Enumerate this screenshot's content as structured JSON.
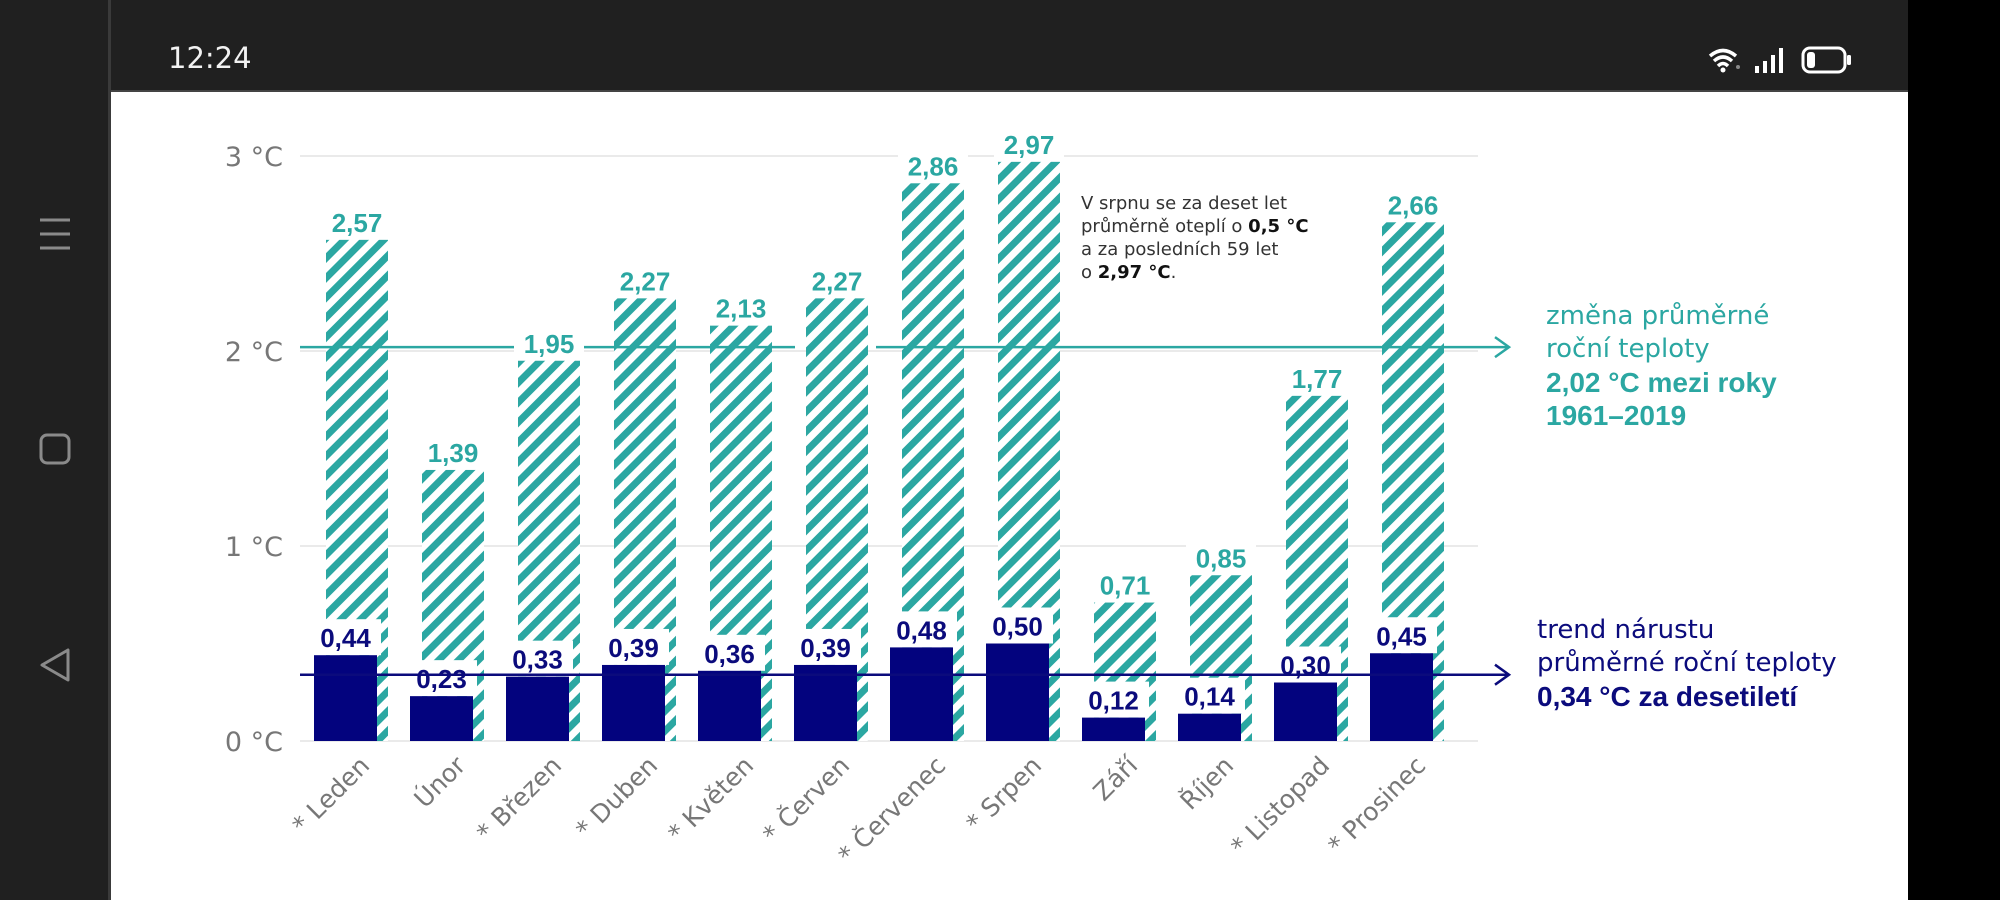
{
  "status_bar": {
    "time": "12:24",
    "icons": [
      "wifi-icon",
      "signal-icon",
      "battery-icon"
    ]
  },
  "nav_bar": {
    "buttons": [
      "recent-apps-icon",
      "home-icon",
      "back-icon"
    ]
  },
  "colors": {
    "teal": "#2ba7a2",
    "navy": "#0b0b7c",
    "axis_text": "#777777"
  },
  "chart_data": {
    "type": "bar",
    "title": "",
    "xlabel": "",
    "ylabel": "",
    "ylim": [
      0,
      3
    ],
    "yticks": [
      {
        "value": 0,
        "label": "0 °C"
      },
      {
        "value": 1,
        "label": "1 °C"
      },
      {
        "value": 2,
        "label": "2 °C"
      },
      {
        "value": 3,
        "label": "3 °C"
      }
    ],
    "grid": true,
    "categories": [
      "* Leden",
      "Únor",
      "* Březen",
      "* Duben",
      "* Květen",
      "* Červen",
      "* Červenec",
      "* Srpen",
      "Září",
      "Říjen",
      "* Listopad",
      "* Prosinec"
    ],
    "series": [
      {
        "name": "změna průměrné teploty 1961–2019",
        "style": "hatched",
        "color": "#2ba7a2",
        "values": [
          2.57,
          1.39,
          1.95,
          2.27,
          2.13,
          2.27,
          2.86,
          2.97,
          0.71,
          0.85,
          1.77,
          2.66
        ],
        "labels": [
          "2,57",
          "1,39",
          "1,95",
          "2,27",
          "2,13",
          "2,27",
          "2,86",
          "2,97",
          "0,71",
          "0,85",
          "1,77",
          "2,66"
        ]
      },
      {
        "name": "trend nárůstu za desetiletí",
        "style": "solid",
        "color": "#0b0b7c",
        "values": [
          0.44,
          0.23,
          0.33,
          0.39,
          0.36,
          0.39,
          0.48,
          0.5,
          0.12,
          0.14,
          0.3,
          0.45
        ],
        "labels": [
          "0,44",
          "0,23",
          "0,33",
          "0,39",
          "0,36",
          "0,39",
          "0,48",
          "0,50",
          "0,12",
          "0,14",
          "0,30",
          "0,45"
        ]
      }
    ],
    "reference_lines": [
      {
        "name": "annual-change-line",
        "value": 2.02,
        "color": "#2ba7a2"
      },
      {
        "name": "annual-trend-line",
        "value": 0.34,
        "color": "#0b0b7c"
      }
    ],
    "annotation": {
      "line1": "V srpnu se za deset let",
      "line2_pre": "průměrně oteplí o ",
      "line2_bold": "0,5 °C",
      "line3": "a za posledních 59 let",
      "line4_pre": "o ",
      "line4_bold": "2,97 °C",
      "line4_post": "."
    },
    "legend": {
      "teal": {
        "line1": "změna průměrné",
        "line2": "roční teploty",
        "line3": "2,02 °C mezi roky",
        "line4": "1961–2019"
      },
      "navy": {
        "line1": "trend nárustu",
        "line2": "průměrné roční teploty",
        "line3": "0,34 °C za desetiletí"
      }
    }
  }
}
